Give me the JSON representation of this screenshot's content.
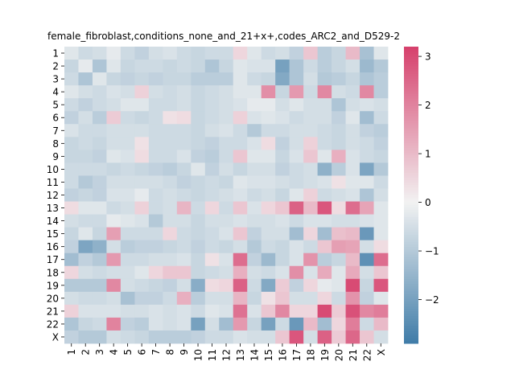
{
  "chart_data": {
    "type": "heatmap",
    "title": "female_fibroblast,conditions_none_and_21+x+,codes_ARC2_and_D529-2",
    "xlabel": "",
    "ylabel": "",
    "row_labels": [
      "1",
      "2",
      "3",
      "4",
      "5",
      "6",
      "7",
      "8",
      "9",
      "10",
      "11",
      "12",
      "13",
      "14",
      "15",
      "16",
      "17",
      "18",
      "19",
      "20",
      "21",
      "22",
      "X"
    ],
    "col_labels": [
      "1",
      "2",
      "3",
      "4",
      "5",
      "6",
      "7",
      "8",
      "9",
      "10",
      "11",
      "12",
      "13",
      "14",
      "15",
      "16",
      "17",
      "18",
      "19",
      "20",
      "21",
      "22",
      "X"
    ],
    "colorbar": {
      "min": -2.9,
      "max": 3.2,
      "ticks": [
        -2,
        -1,
        0,
        1,
        2,
        3
      ],
      "tick_labels": [
        "−2",
        "−1",
        "0",
        "1",
        "2",
        "3"
      ]
    },
    "colors": {
      "low": "#3f7ca8",
      "mid": "#f2f2f2",
      "high": "#d6406c"
    },
    "values": [
      [
        -0.3,
        -0.6,
        -0.5,
        -0.2,
        -0.6,
        -0.8,
        -0.5,
        -0.4,
        -0.6,
        -0.7,
        -0.6,
        -0.6,
        0.5,
        -0.3,
        -0.6,
        -0.5,
        -0.8,
        0.8,
        -0.9,
        -0.7,
        1.0,
        -1.2,
        -0.3
      ],
      [
        -0.7,
        -0.2,
        -1.1,
        -0.3,
        -0.7,
        -0.6,
        -0.6,
        -0.7,
        -0.6,
        -0.7,
        -1.1,
        -0.7,
        -0.3,
        -0.4,
        -0.4,
        -2.0,
        -1.1,
        -0.6,
        -0.9,
        -0.7,
        -0.5,
        -1.4,
        -1.0
      ],
      [
        -0.6,
        -1.1,
        -0.3,
        -0.7,
        -0.8,
        -0.7,
        -0.8,
        -0.7,
        -0.7,
        -0.9,
        -0.9,
        -0.9,
        -0.3,
        -0.6,
        -0.7,
        -1.8,
        -1.1,
        -0.5,
        -1.0,
        -0.9,
        -0.7,
        -1.1,
        -0.9
      ],
      [
        -0.3,
        -0.5,
        -0.6,
        -0.4,
        -0.5,
        0.6,
        -0.5,
        -0.6,
        -0.5,
        -0.7,
        -0.6,
        -0.5,
        -0.3,
        -0.3,
        1.8,
        -0.7,
        1.6,
        -0.6,
        1.9,
        -0.5,
        -0.6,
        1.9,
        -0.9
      ],
      [
        -0.6,
        -0.8,
        -0.6,
        -0.5,
        -0.3,
        -0.3,
        -0.6,
        -0.6,
        -0.5,
        -0.7,
        -0.6,
        -0.5,
        -0.4,
        -0.2,
        -0.2,
        -0.5,
        -0.3,
        -0.5,
        -0.5,
        -1.1,
        -0.5,
        -0.4,
        -0.5
      ],
      [
        -0.8,
        -0.5,
        -0.9,
        0.7,
        -0.6,
        -0.7,
        -0.6,
        0.3,
        0.4,
        -0.7,
        -0.6,
        -0.5,
        0.6,
        -0.4,
        -0.3,
        -0.4,
        -0.6,
        -0.5,
        -0.5,
        -0.8,
        -0.3,
        -1.3,
        -0.6
      ],
      [
        -0.4,
        -0.6,
        -0.6,
        -0.5,
        -0.5,
        -0.5,
        -0.6,
        -0.6,
        -0.6,
        -0.7,
        -0.5,
        -0.4,
        -0.6,
        -1.0,
        -0.6,
        -0.6,
        -0.5,
        -0.5,
        -0.6,
        -0.7,
        -0.5,
        -0.8,
        -0.9
      ],
      [
        -0.7,
        -0.6,
        -0.7,
        -0.5,
        -0.5,
        0.3,
        -0.6,
        -0.6,
        -0.6,
        -0.7,
        -0.8,
        -0.6,
        -0.6,
        -0.4,
        0.4,
        -0.8,
        -0.5,
        0.6,
        -0.6,
        -0.7,
        -0.5,
        -0.6,
        -0.8
      ],
      [
        -0.7,
        -0.7,
        -0.8,
        -0.3,
        -0.4,
        0.4,
        -0.6,
        -0.6,
        -0.4,
        -0.8,
        -0.9,
        -0.6,
        0.8,
        -0.3,
        -0.3,
        -0.7,
        -0.4,
        0.8,
        -0.3,
        1.2,
        -0.4,
        -0.6,
        -0.7
      ],
      [
        -0.6,
        -0.6,
        -0.6,
        -0.7,
        -0.6,
        -0.7,
        -0.8,
        -0.9,
        -0.7,
        -0.3,
        -0.8,
        -0.5,
        -0.7,
        -0.5,
        -0.5,
        -0.8,
        -0.6,
        -0.5,
        -1.6,
        -0.9,
        -0.4,
        -1.9,
        -1.0
      ],
      [
        -0.6,
        -1.0,
        -0.8,
        -0.5,
        -0.5,
        -0.5,
        -0.5,
        -0.6,
        -0.8,
        -0.7,
        -0.6,
        -0.7,
        -0.3,
        -0.4,
        -0.4,
        -0.5,
        -0.6,
        -0.5,
        -0.4,
        0.3,
        -0.3,
        -0.3,
        -0.6
      ],
      [
        -0.8,
        -0.7,
        -0.8,
        -0.4,
        -0.4,
        -0.2,
        -0.6,
        -0.5,
        -0.6,
        -0.7,
        -0.6,
        -0.5,
        -0.4,
        -0.6,
        -0.5,
        -0.7,
        -0.3,
        0.6,
        -0.6,
        -0.5,
        -0.4,
        -1.1,
        -0.5
      ],
      [
        0.4,
        -0.3,
        -0.3,
        -0.6,
        -0.5,
        0.6,
        -0.6,
        -0.5,
        1.1,
        -0.6,
        0.5,
        -0.6,
        0.8,
        -0.4,
        0.5,
        0.8,
        2.6,
        1.0,
        2.8,
        0.4,
        2.4,
        1.4,
        -0.3
      ],
      [
        -0.5,
        -0.6,
        -0.6,
        -0.2,
        -0.3,
        -0.4,
        -1.0,
        -0.5,
        -0.5,
        -0.7,
        -0.5,
        -0.5,
        -0.4,
        -0.5,
        -0.5,
        -0.4,
        -0.6,
        -0.4,
        -0.4,
        -0.5,
        -0.5,
        -0.4,
        -0.3
      ],
      [
        -0.7,
        -0.3,
        -0.7,
        1.5,
        -0.6,
        -0.6,
        -0.6,
        0.5,
        -0.6,
        -0.7,
        -0.6,
        -0.4,
        0.8,
        -0.8,
        -0.5,
        -0.5,
        -1.3,
        0.5,
        -1.3,
        0.9,
        1.0,
        -2.2,
        -0.3
      ],
      [
        -0.8,
        -1.9,
        -1.6,
        -0.5,
        -0.9,
        -0.8,
        -0.8,
        -0.7,
        -0.6,
        -0.8,
        -0.6,
        -0.7,
        -0.5,
        -1.0,
        -0.6,
        -0.7,
        -0.4,
        -0.6,
        0.8,
        1.5,
        1.4,
        -0.5,
        0.4
      ],
      [
        -1.3,
        -0.8,
        -1.0,
        1.6,
        -0.6,
        -0.6,
        -0.5,
        -0.5,
        -0.4,
        -0.7,
        0.3,
        -0.4,
        2.4,
        -0.8,
        -1.4,
        -0.7,
        -0.4,
        1.7,
        -0.9,
        -0.7,
        1.0,
        -2.4,
        2.4
      ],
      [
        0.5,
        -0.5,
        -0.6,
        -0.5,
        -0.5,
        -0.3,
        0.5,
        0.8,
        0.8,
        -0.7,
        -0.6,
        -0.5,
        1.2,
        -0.5,
        -0.6,
        -0.4,
        1.8,
        -0.4,
        1.3,
        -0.3,
        1.3,
        -0.5,
        0.8
      ],
      [
        -1.0,
        -1.0,
        -1.0,
        1.9,
        -0.5,
        -0.6,
        -0.7,
        -0.8,
        -0.5,
        -1.7,
        0.4,
        0.5,
        2.6,
        -0.6,
        -1.8,
        0.7,
        -0.8,
        0.5,
        -0.2,
        -0.3,
        3.0,
        -0.7,
        2.8
      ],
      [
        -0.5,
        -0.6,
        -0.6,
        -0.5,
        -1.2,
        -0.8,
        -0.8,
        -0.6,
        1.2,
        -0.9,
        -0.5,
        -0.5,
        1.1,
        -0.7,
        0.3,
        0.8,
        -0.5,
        -0.5,
        0.5,
        -0.6,
        1.7,
        -0.8,
        -0.3
      ],
      [
        0.6,
        -0.4,
        -0.4,
        -0.4,
        -0.5,
        -0.5,
        -0.4,
        -0.5,
        -0.4,
        -0.6,
        -0.3,
        -0.4,
        2.3,
        -0.4,
        0.8,
        1.9,
        0.5,
        0.5,
        3.0,
        0.7,
        2.9,
        1.9,
        2.1
      ],
      [
        -1.1,
        -0.7,
        -0.6,
        2.0,
        -0.8,
        -0.9,
        -0.4,
        -0.5,
        -0.4,
        -2.0,
        -0.5,
        -1.3,
        1.6,
        -0.7,
        -2.0,
        -0.6,
        -2.2,
        1.0,
        -1.3,
        0.5,
        2.1,
        -0.6,
        1.0
      ],
      [
        -0.8,
        -1.0,
        -1.0,
        -0.5,
        -0.6,
        -0.7,
        -0.9,
        -0.9,
        -0.9,
        -0.8,
        -0.6,
        -0.6,
        -0.4,
        -0.5,
        -0.5,
        0.8,
        2.8,
        -0.5,
        2.6,
        0.7,
        2.5,
        0.8,
        -0.5
      ]
    ]
  }
}
